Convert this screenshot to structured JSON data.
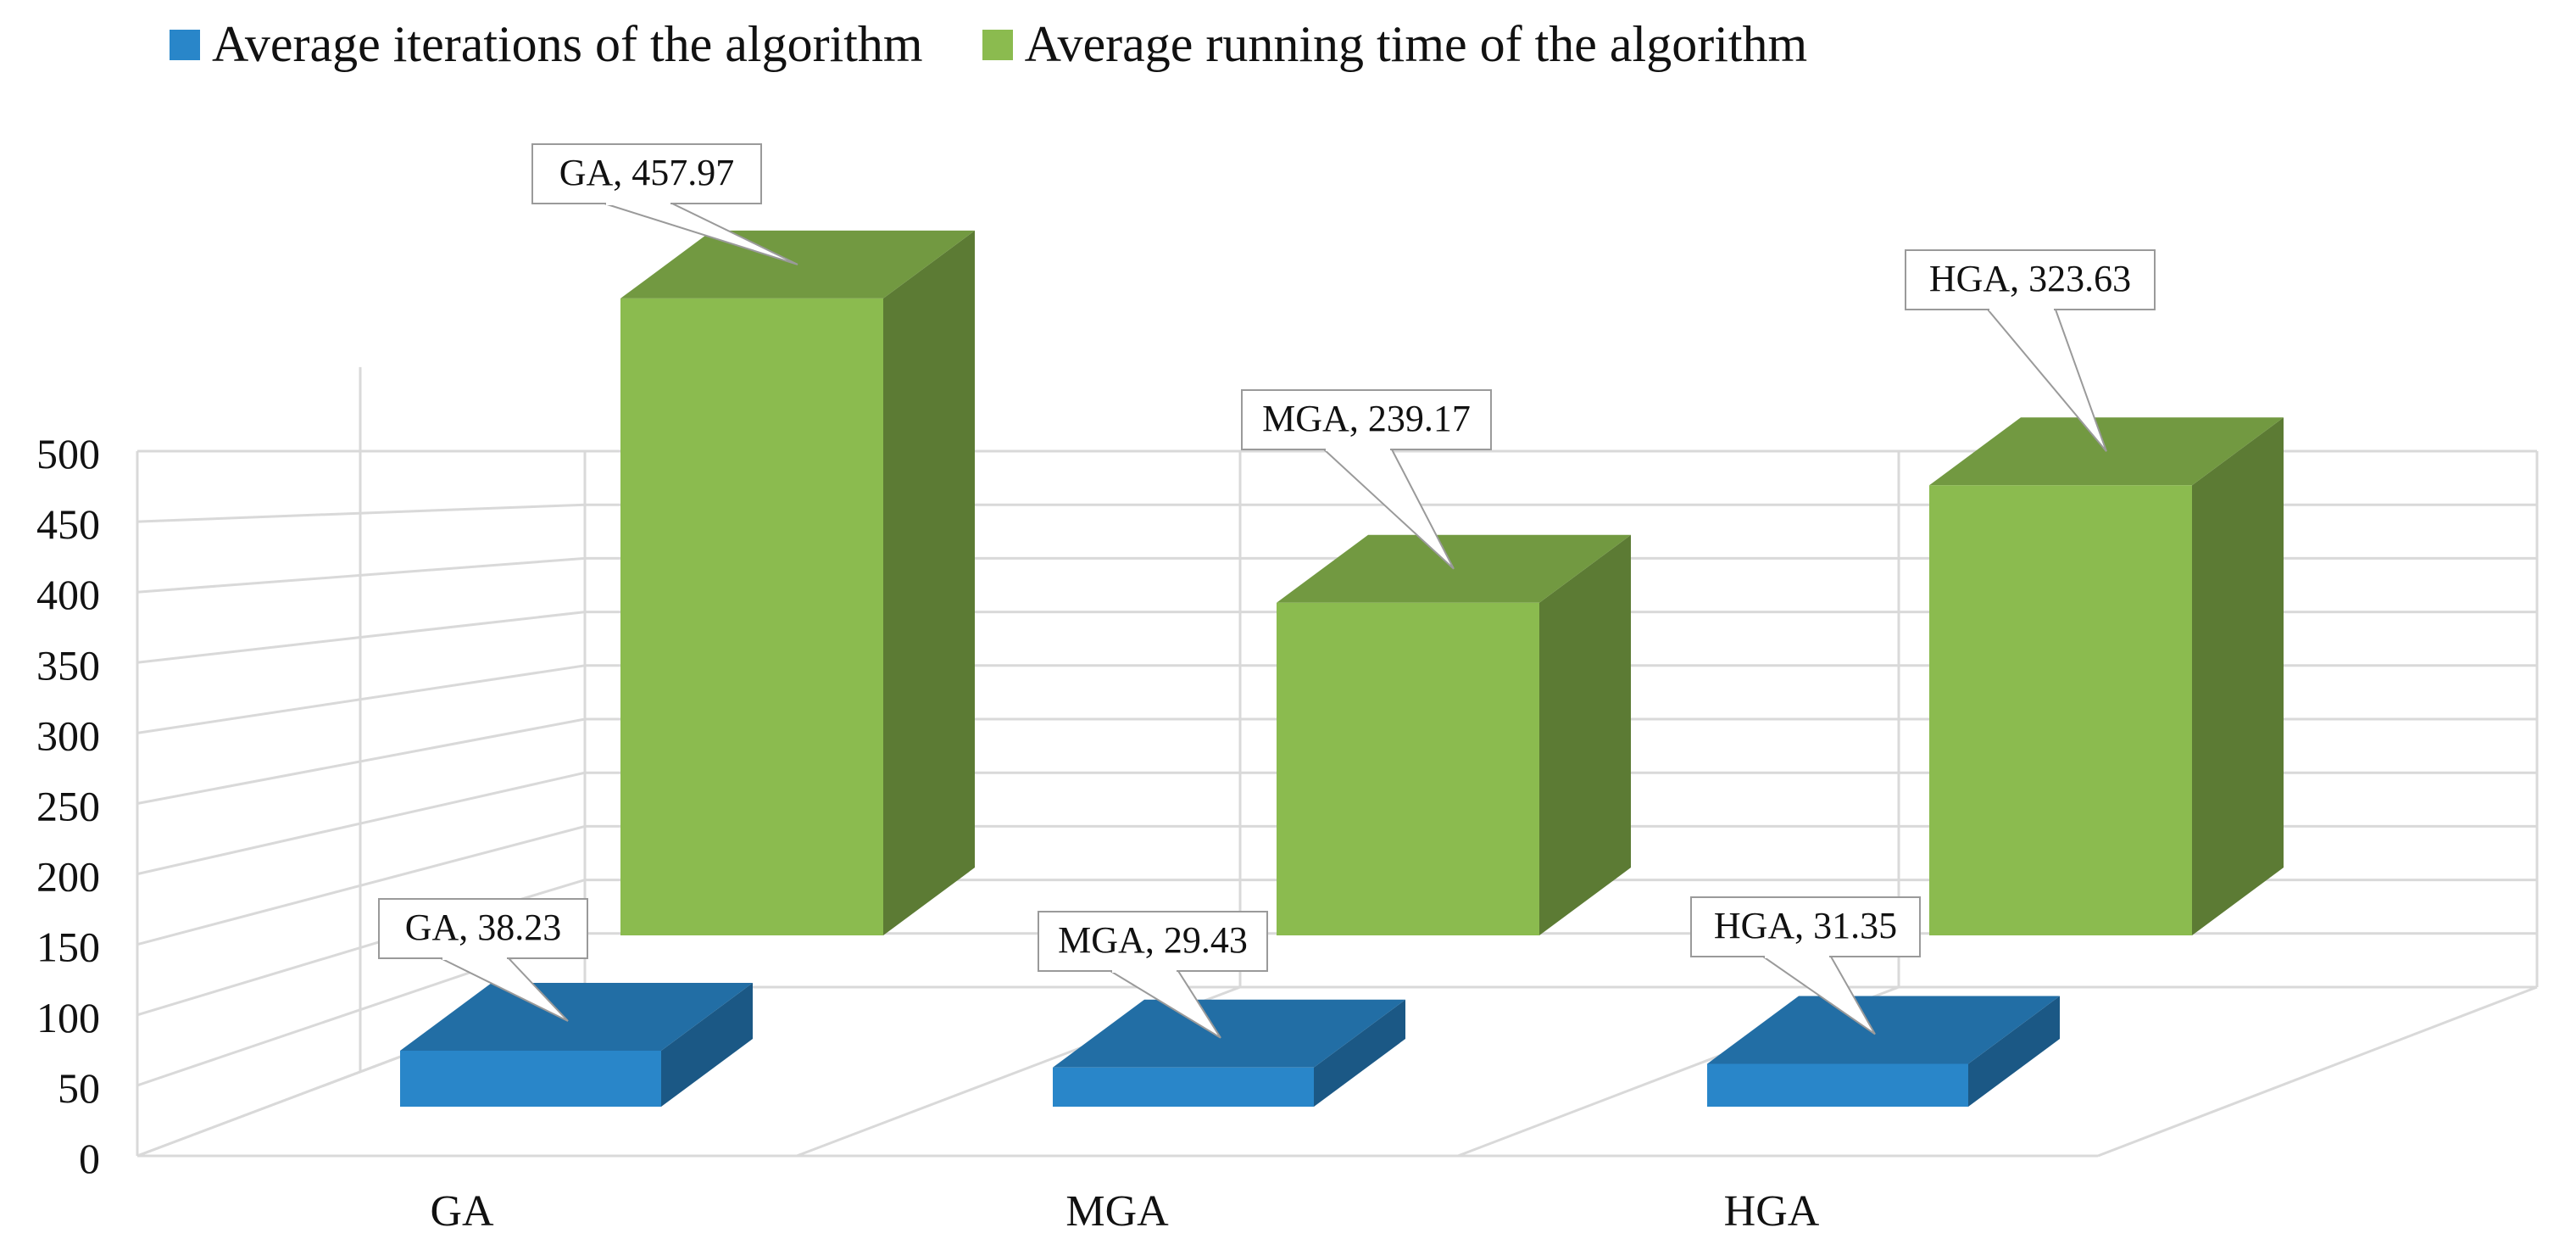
{
  "chart_data": {
    "type": "bar",
    "categories": [
      "GA",
      "MGA",
      "HGA"
    ],
    "series": [
      {
        "name": "Average iterations of the algorithm",
        "values": [
          38.23,
          29.43,
          31.35
        ],
        "color": "#2986c9"
      },
      {
        "name": "Average running time of the algorithm",
        "values": [
          457.97,
          239.17,
          323.63
        ],
        "color": "#8bbb4f"
      }
    ],
    "data_labels": {
      "iterations": [
        "GA, 38.23",
        "MGA, 29.43",
        "HGA, 31.35"
      ],
      "running_time": [
        "GA, 457.97",
        "MGA, 239.17",
        "HGA, 323.63"
      ]
    },
    "y_ticks": [
      "0",
      "50",
      "100",
      "150",
      "200",
      "250",
      "300",
      "350",
      "400",
      "450",
      "500"
    ],
    "ylim": [
      0,
      500
    ],
    "legend_position": "top",
    "grid": true,
    "title": "",
    "xlabel": "",
    "ylabel": ""
  }
}
